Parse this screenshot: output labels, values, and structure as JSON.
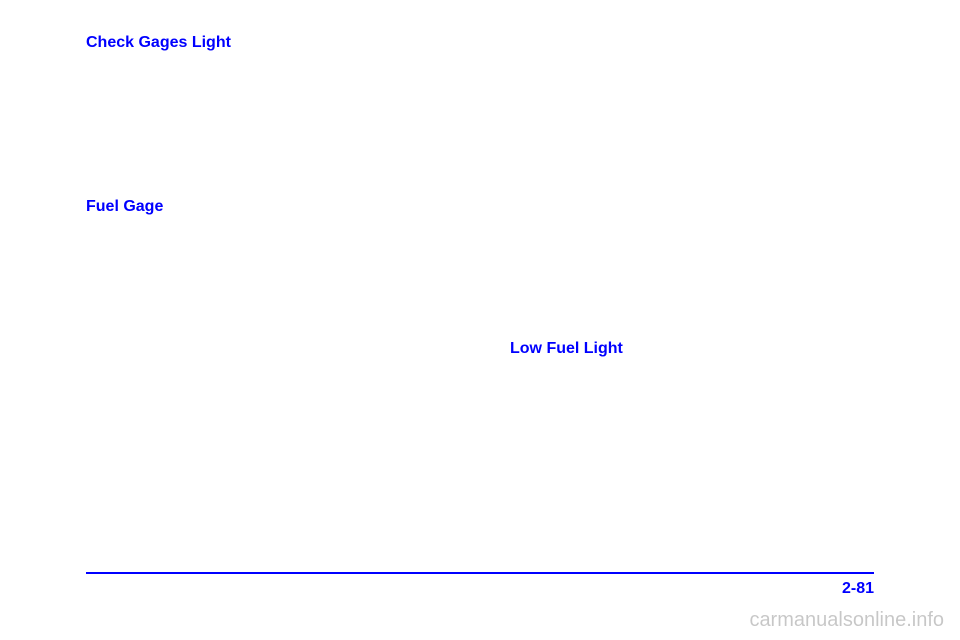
{
  "left": {
    "heading1": "Check Gages Light",
    "heading2": "Fuel Gage"
  },
  "right": {
    "heading1": "Low Fuel Light"
  },
  "footer": {
    "page": "2-81"
  },
  "watermark": "carmanualsonline.info",
  "colors": {
    "accent": "#0000ff",
    "background": "#ffffff",
    "watermark": "rgba(0,0,0,0.22)"
  }
}
